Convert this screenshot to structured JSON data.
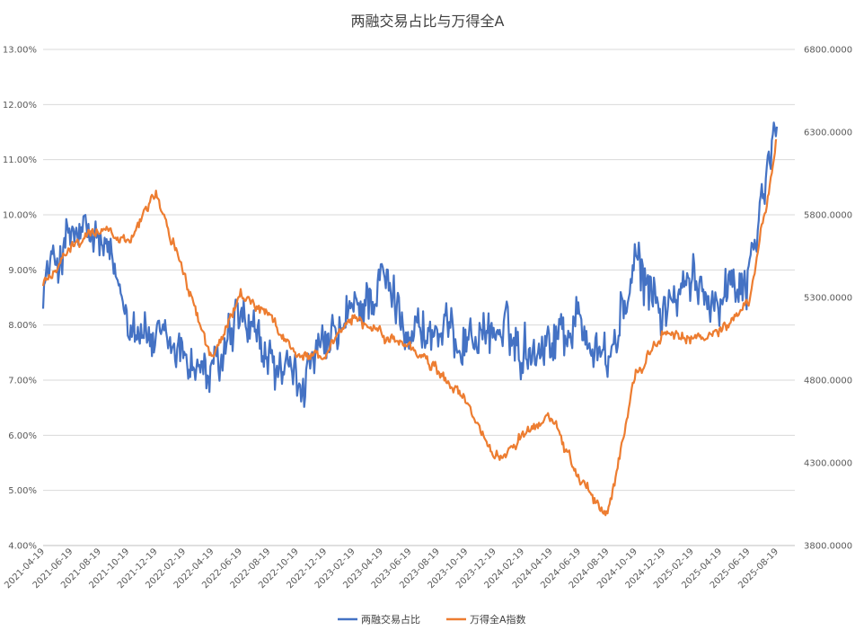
{
  "chart_data": {
    "type": "line",
    "title": "两融交易占比与万得全A",
    "left_axis": {
      "min": 4.0,
      "max": 13.0,
      "step": 1.0,
      "tick_labels": [
        "4.00%",
        "5.00%",
        "6.00%",
        "7.00%",
        "8.00%",
        "9.00%",
        "10.00%",
        "11.00%",
        "12.00%",
        "13.00%"
      ]
    },
    "right_axis": {
      "min": 3800,
      "max": 6800,
      "step": 500,
      "tick_labels": [
        "3800.0000",
        "4300.0000",
        "4800.0000",
        "5300.0000",
        "5800.0000",
        "6300.0000",
        "6800.0000"
      ]
    },
    "categories": [
      "2021-04-19",
      "2021-06-19",
      "2021-08-19",
      "2021-10-19",
      "2021-12-19",
      "2022-02-19",
      "2022-04-19",
      "2022-06-19",
      "2022-08-19",
      "2022-10-19",
      "2022-12-19",
      "2023-02-19",
      "2023-04-19",
      "2023-06-19",
      "2023-08-19",
      "2023-10-19",
      "2023-12-19",
      "2024-02-19",
      "2024-04-19",
      "2024-06-19",
      "2024-08-19",
      "2024-10-19",
      "2024-12-19",
      "2025-02-19",
      "2025-04-19",
      "2025-06-19",
      "2025-08-19"
    ],
    "series": [
      {
        "name": "两融交易占比",
        "axis": "left",
        "color": "#4472C4",
        "values": [
          8.8,
          9.6,
          9.5,
          8.3,
          7.6,
          7.5,
          7.0,
          8.1,
          7.3,
          6.9,
          7.5,
          8.2,
          8.8,
          8.0,
          7.8,
          7.8,
          7.9,
          7.6,
          7.8,
          8.1,
          7.3,
          9.0,
          8.3,
          8.7,
          8.6,
          9.0,
          11.6
        ]
      },
      {
        "name": "万得全A指数",
        "axis": "right",
        "color": "#ED7D31",
        "values": [
          5380,
          5600,
          5720,
          5640,
          5950,
          5420,
          4920,
          5320,
          5180,
          4950,
          4950,
          5180,
          5080,
          5000,
          4850,
          4670,
          4320,
          4450,
          4580,
          4200,
          3980,
          4850,
          5080,
          5040,
          5100,
          5260,
          6250
        ]
      }
    ],
    "legend": [
      "两融交易占比",
      "万得全A指数"
    ],
    "legend_position": "bottom",
    "grid": true
  }
}
